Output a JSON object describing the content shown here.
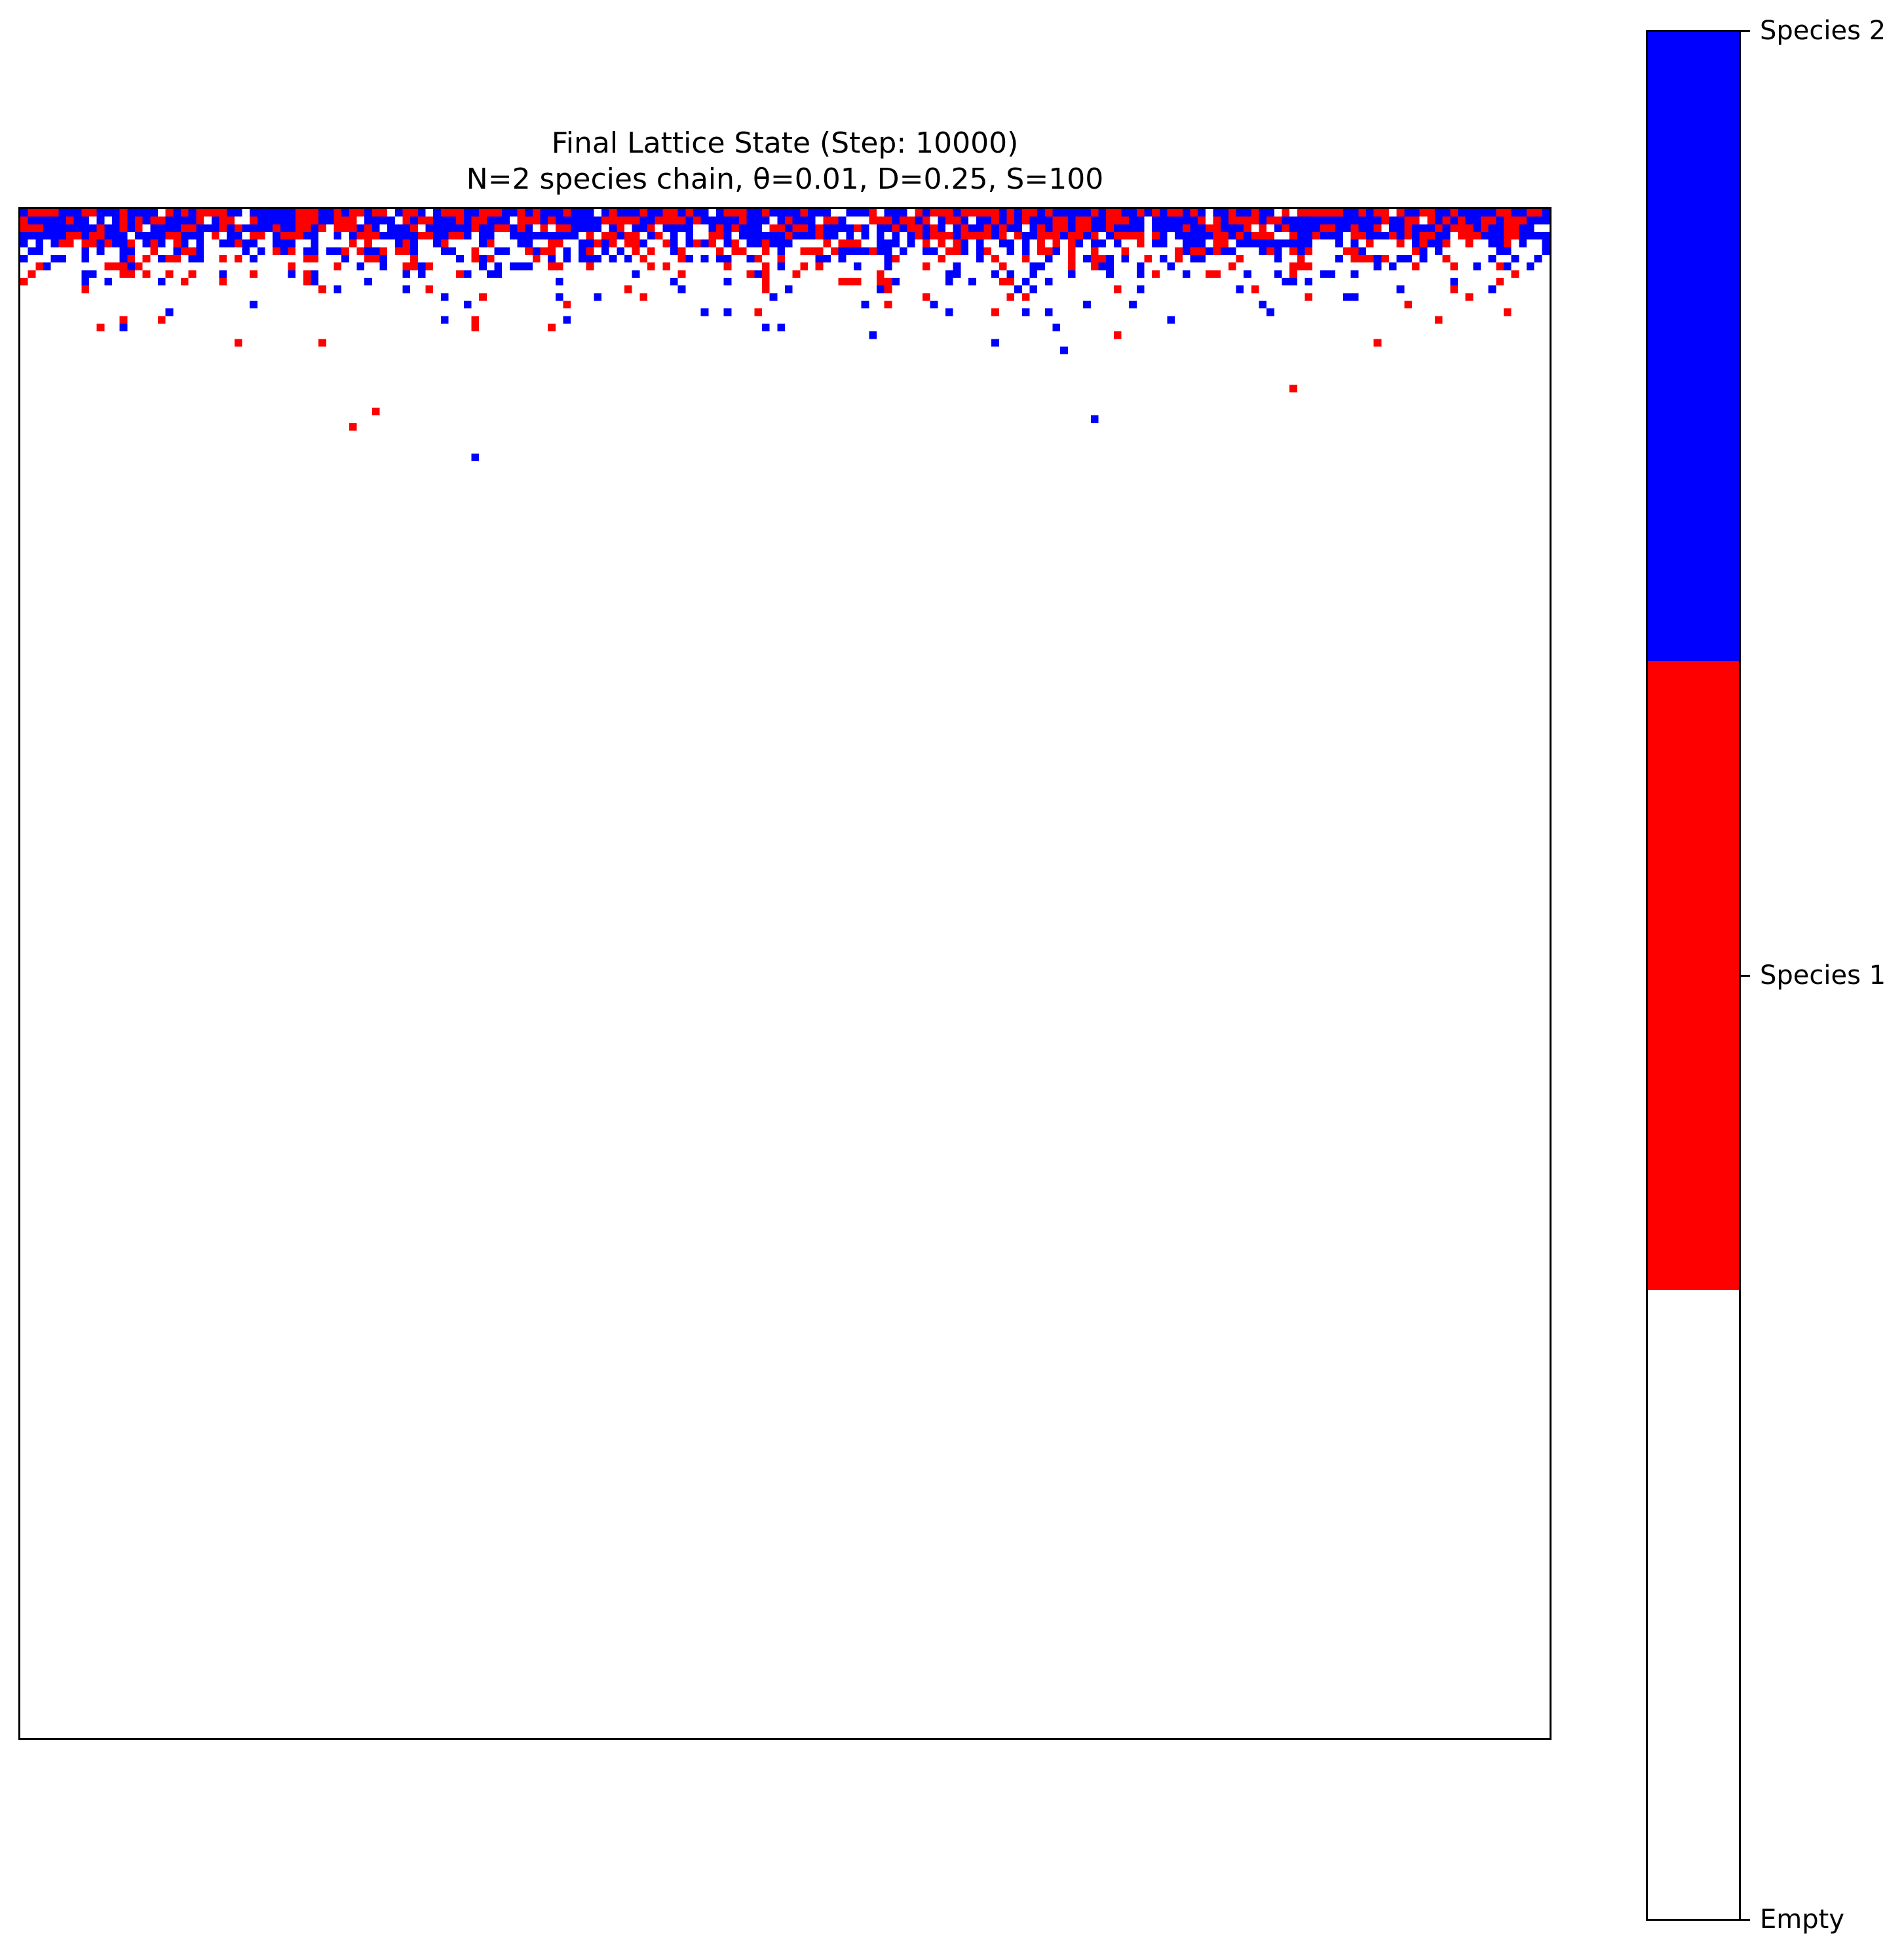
{
  "chart_data": {
    "type": "heatmap",
    "title": "Final Lattice State (Step: 10000)",
    "subtitle": "N=2 species chain, θ=0.01, D=0.25, S=100",
    "lattice_size": 200,
    "states": [
      {
        "value": 0,
        "label": "Empty",
        "color": "#ffffff"
      },
      {
        "value": 1,
        "label": "Species 1",
        "color": "#ff0000"
      },
      {
        "value": 2,
        "label": "Species 2",
        "color": "#0000ff"
      }
    ],
    "colorbar": {
      "ticks": [
        "Empty",
        "Species 1",
        "Species 2"
      ],
      "placement": "right"
    },
    "occupancy_profile": [
      {
        "row": 0,
        "fill": 0.93,
        "species2_share": 0.55
      },
      {
        "row": 1,
        "fill": 0.92,
        "species2_share": 0.55
      },
      {
        "row": 2,
        "fill": 0.9,
        "species2_share": 0.58
      },
      {
        "row": 3,
        "fill": 0.82,
        "species2_share": 0.6
      },
      {
        "row": 4,
        "fill": 0.6,
        "species2_share": 0.6
      },
      {
        "row": 5,
        "fill": 0.5,
        "species2_share": 0.55
      },
      {
        "row": 6,
        "fill": 0.4,
        "species2_share": 0.6
      },
      {
        "row": 7,
        "fill": 0.3,
        "species2_share": 0.6
      },
      {
        "row": 8,
        "fill": 0.22,
        "species2_share": 0.6
      },
      {
        "row": 9,
        "fill": 0.15,
        "species2_share": 0.55
      },
      {
        "row": 10,
        "fill": 0.1,
        "species2_share": 0.6
      },
      {
        "row": 11,
        "fill": 0.07,
        "species2_share": 0.55
      },
      {
        "row": 12,
        "fill": 0.05,
        "species2_share": 0.55
      },
      {
        "row": 13,
        "fill": 0.035,
        "species2_share": 0.55
      },
      {
        "row": 14,
        "fill": 0.025,
        "species2_share": 0.5
      },
      {
        "row": 15,
        "fill": 0.02,
        "species2_share": 0.5
      },
      {
        "row": 16,
        "fill": 0.012,
        "species2_share": 0.5
      },
      {
        "row": 17,
        "fill": 0.008,
        "species2_share": 0.5
      },
      {
        "row": 18,
        "fill": 0.005,
        "species2_share": 0.5
      },
      {
        "row": 19,
        "fill": 0.003,
        "species2_share": 0.5
      }
    ],
    "isolated_cells": [
      {
        "row": 23,
        "col": 166,
        "state": 1
      },
      {
        "row": 26,
        "col": 46,
        "state": 1
      },
      {
        "row": 27,
        "col": 140,
        "state": 2
      },
      {
        "row": 28,
        "col": 43,
        "state": 1
      },
      {
        "row": 32,
        "col": 59,
        "state": 2
      }
    ]
  }
}
